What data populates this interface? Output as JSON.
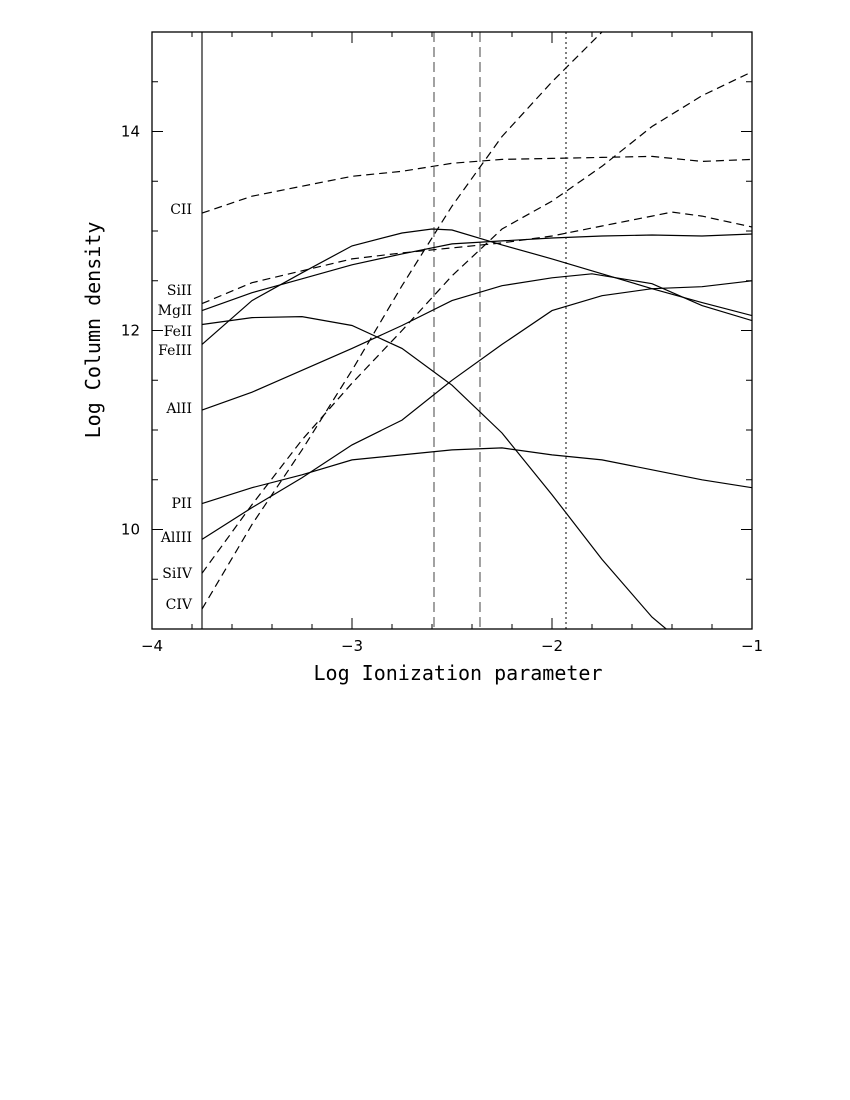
{
  "chart_data": {
    "type": "line",
    "title": "",
    "xlabel": "Log Ionization parameter",
    "ylabel": "Log Column density",
    "xlim": [
      -4,
      -1
    ],
    "ylim": [
      9,
      15
    ],
    "grid": false,
    "x_ticks": [
      -4,
      -3,
      -2,
      -1
    ],
    "x_tick_labels": [
      "−4",
      "−3",
      "−2",
      "−1"
    ],
    "y_ticks": [
      10,
      12,
      14
    ],
    "y_tick_labels": [
      "10",
      "12",
      "14"
    ],
    "reference_lines": [
      {
        "x": -3.75,
        "style": "solid"
      },
      {
        "x": -2.59,
        "style": "dashed"
      },
      {
        "x": -2.36,
        "style": "dashed"
      },
      {
        "x": -1.93,
        "style": "dotted"
      }
    ],
    "series": [
      {
        "name": "CII",
        "style": "dashed",
        "x": [
          -3.75,
          -3.5,
          -3.25,
          -3.0,
          -2.75,
          -2.5,
          -2.25,
          -2.0,
          -1.75,
          -1.5,
          -1.25,
          -1.0
        ],
        "y": [
          13.18,
          13.35,
          13.45,
          13.55,
          13.6,
          13.68,
          13.72,
          13.73,
          13.74,
          13.75,
          13.7,
          13.72
        ]
      },
      {
        "name": "SiII",
        "style": "dashed",
        "x": [
          -3.75,
          -3.5,
          -3.25,
          -3.0,
          -2.75,
          -2.5,
          -2.25,
          -2.0,
          -1.75,
          -1.5,
          -1.4,
          -1.25,
          -1.0
        ],
        "y": [
          12.27,
          12.48,
          12.6,
          12.72,
          12.78,
          12.83,
          12.88,
          12.95,
          13.05,
          13.15,
          13.19,
          13.15,
          13.04
        ]
      },
      {
        "name": "MgII",
        "style": "solid",
        "x": [
          -3.75,
          -3.5,
          -3.25,
          -3.0,
          -2.75,
          -2.5,
          -2.25,
          -2.0,
          -1.75,
          -1.5,
          -1.25,
          -1.0
        ],
        "y": [
          12.2,
          12.38,
          12.52,
          12.66,
          12.77,
          12.87,
          12.9,
          12.93,
          12.95,
          12.96,
          12.95,
          12.97
        ]
      },
      {
        "name": "FeII",
        "style": "solid",
        "x": [
          -3.75,
          -3.5,
          -3.25,
          -3.0,
          -2.75,
          -2.5,
          -2.25,
          -2.0,
          -1.75,
          -1.5,
          -1.25,
          -1.0
        ],
        "y": [
          12.06,
          12.13,
          12.14,
          12.05,
          11.82,
          11.45,
          10.97,
          10.35,
          9.7,
          9.12,
          8.7,
          8.4
        ]
      },
      {
        "name": "FeIII",
        "style": "solid",
        "x": [
          -3.75,
          -3.5,
          -3.25,
          -3.0,
          -2.75,
          -2.6,
          -2.5,
          -2.25,
          -2.0,
          -1.75,
          -1.5,
          -1.25,
          -1.0
        ],
        "y": [
          11.86,
          12.3,
          12.58,
          12.85,
          12.98,
          13.02,
          13.01,
          12.86,
          12.72,
          12.57,
          12.42,
          12.28,
          12.15
        ]
      },
      {
        "name": "AlII",
        "style": "solid",
        "x": [
          -3.75,
          -3.5,
          -3.25,
          -3.0,
          -2.75,
          -2.5,
          -2.25,
          -2.0,
          -1.8,
          -1.5,
          -1.25,
          -1.0
        ],
        "y": [
          11.2,
          11.38,
          11.6,
          11.82,
          12.05,
          12.3,
          12.45,
          12.53,
          12.57,
          12.47,
          12.25,
          12.1
        ]
      },
      {
        "name": "PII",
        "style": "solid",
        "x": [
          -3.75,
          -3.5,
          -3.25,
          -3.0,
          -2.75,
          -2.5,
          -2.25,
          -2.0,
          -1.75,
          -1.5,
          -1.25,
          -1.0
        ],
        "y": [
          10.26,
          10.42,
          10.55,
          10.7,
          10.75,
          10.8,
          10.82,
          10.75,
          10.7,
          10.6,
          10.5,
          10.42
        ]
      },
      {
        "name": "AlIII",
        "style": "solid",
        "x": [
          -3.75,
          -3.5,
          -3.25,
          -3.0,
          -2.75,
          -2.5,
          -2.25,
          -2.0,
          -1.75,
          -1.5,
          -1.25,
          -1.0
        ],
        "y": [
          9.9,
          10.22,
          10.52,
          10.85,
          11.1,
          11.5,
          11.86,
          12.2,
          12.35,
          12.42,
          12.44,
          12.5
        ]
      },
      {
        "name": "SiIV",
        "style": "dashed",
        "x": [
          -3.75,
          -3.5,
          -3.25,
          -3.0,
          -2.75,
          -2.5,
          -2.25,
          -2.0,
          -1.75,
          -1.5,
          -1.25,
          -1.0
        ],
        "y": [
          9.56,
          10.25,
          10.9,
          11.47,
          12.0,
          12.55,
          13.02,
          13.3,
          13.65,
          14.05,
          14.36,
          14.6
        ]
      },
      {
        "name": "CIV",
        "style": "dashed",
        "x": [
          -3.75,
          -3.5,
          -3.25,
          -3.0,
          -2.75,
          -2.5,
          -2.25,
          -2.0,
          -1.75
        ],
        "y": [
          9.2,
          10.05,
          10.8,
          11.6,
          12.45,
          13.25,
          13.95,
          14.5,
          15.0
        ]
      }
    ],
    "series_labels": [
      "CII",
      "SiII",
      "MgII",
      "FeII",
      "FeIII",
      "AlII",
      "PII",
      "AlIII",
      "SiIV",
      "CIV"
    ]
  }
}
